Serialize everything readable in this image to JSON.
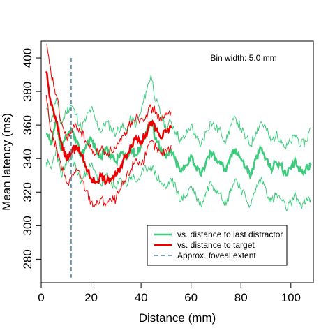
{
  "chart_data": {
    "type": "line",
    "title": "",
    "xlabel": "Distance (mm)",
    "ylabel": "Mean latency (ms)",
    "xlim": [
      0,
      109
    ],
    "ylim": [
      266,
      410
    ],
    "xticks": [
      0,
      20,
      40,
      60,
      80,
      100
    ],
    "yticks": [
      280,
      300,
      320,
      340,
      360,
      380,
      400
    ],
    "annotation": "Bin width: 5.0 mm",
    "grid": false,
    "legend_position": "bottom-right",
    "colors": {
      "distractor": "#3ecb7d",
      "target": "#ee0000",
      "foveal": "#4a86b0"
    },
    "reference_line": {
      "name": "Approx. foveal extent",
      "x": 12,
      "style": "dashed"
    },
    "series": [
      {
        "name": "vs. distance to last distractor",
        "x": [
          2,
          4,
          6,
          8,
          10,
          12,
          14,
          16,
          18,
          20,
          22,
          24,
          26,
          28,
          30,
          32,
          34,
          36,
          38,
          40,
          42,
          44,
          46,
          48,
          50,
          52,
          54,
          56,
          58,
          60,
          62,
          64,
          66,
          68,
          70,
          72,
          74,
          76,
          78,
          80,
          82,
          84,
          86,
          88,
          90,
          92,
          94,
          96,
          98,
          100,
          102,
          104,
          106,
          108
        ],
        "mean": [
          355,
          348,
          362,
          345,
          352,
          358,
          350,
          342,
          348,
          352,
          345,
          340,
          346,
          342,
          338,
          344,
          340,
          346,
          342,
          348,
          356,
          362,
          352,
          346,
          340,
          345,
          338,
          332,
          336,
          342,
          335,
          330,
          338,
          344,
          340,
          338,
          332,
          342,
          346,
          340,
          335,
          330,
          340,
          346,
          340,
          334,
          338,
          336,
          330,
          334,
          338,
          332,
          334,
          336
        ],
        "upper": [
          370,
          362,
          376,
          360,
          368,
          372,
          366,
          358,
          364,
          370,
          362,
          356,
          362,
          358,
          355,
          360,
          356,
          364,
          360,
          368,
          380,
          390,
          374,
          366,
          358,
          362,
          356,
          350,
          354,
          360,
          352,
          348,
          356,
          362,
          358,
          356,
          350,
          360,
          364,
          358,
          352,
          348,
          356,
          362,
          358,
          350,
          354,
          352,
          346,
          350,
          354,
          348,
          350,
          358
        ],
        "lower": [
          338,
          334,
          346,
          330,
          336,
          342,
          334,
          326,
          332,
          336,
          330,
          324,
          330,
          326,
          322,
          328,
          324,
          330,
          326,
          330,
          334,
          336,
          330,
          326,
          322,
          328,
          322,
          315,
          318,
          324,
          318,
          312,
          320,
          326,
          322,
          320,
          312,
          322,
          328,
          322,
          316,
          312,
          322,
          328,
          322,
          314,
          318,
          316,
          310,
          314,
          318,
          312,
          314,
          316
        ]
      },
      {
        "name": "vs. distance to target",
        "x": [
          2,
          4,
          6,
          8,
          10,
          12,
          14,
          16,
          18,
          20,
          22,
          24,
          26,
          28,
          30,
          32,
          34,
          36,
          38,
          40,
          42,
          44,
          46,
          48,
          50,
          52
        ],
        "mean": [
          392,
          372,
          362,
          350,
          340,
          343,
          348,
          342,
          335,
          328,
          326,
          330,
          326,
          328,
          330,
          336,
          342,
          348,
          353,
          350,
          355,
          362,
          357,
          352,
          356,
          358
        ],
        "upper": [
          408,
          390,
          378,
          362,
          352,
          355,
          360,
          356,
          350,
          345,
          343,
          346,
          343,
          345,
          346,
          350,
          356,
          362,
          365,
          364,
          366,
          370,
          368,
          362,
          366,
          368
        ],
        "lower": [
          378,
          356,
          346,
          336,
          326,
          328,
          334,
          328,
          321,
          314,
          312,
          316,
          313,
          315,
          316,
          322,
          328,
          334,
          340,
          336,
          342,
          350,
          346,
          342,
          345,
          348
        ]
      }
    ]
  },
  "legend": {
    "items": [
      {
        "label": "vs. distance to last distractor"
      },
      {
        "label": "vs. distance to target"
      },
      {
        "label": "Approx. foveal extent"
      }
    ]
  }
}
